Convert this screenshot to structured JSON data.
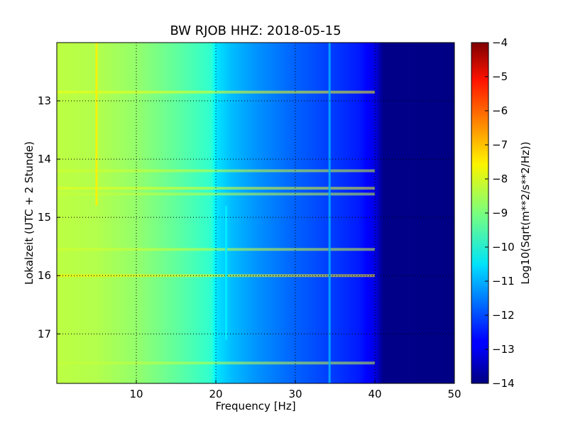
{
  "chart_data": {
    "type": "heatmap",
    "title": "BW RJOB HHZ: 2018-05-15",
    "xlabel": "Frequency [Hz]",
    "ylabel": "Lokalzeit (UTC + 2 Stunde)",
    "colorbar_label": "Log10(Sqrt(m**2/s**2/Hz))",
    "colormap": "jet",
    "xlim": [
      0,
      50
    ],
    "ylim": [
      17.85,
      12.0
    ],
    "y_inverted": true,
    "x_ticks": [
      "10",
      "20",
      "30",
      "40",
      "50"
    ],
    "x_tick_values": [
      10,
      20,
      30,
      40,
      50
    ],
    "y_ticks": [
      "13",
      "14",
      "15",
      "16",
      "17"
    ],
    "y_tick_values": [
      13,
      14,
      15,
      16,
      17
    ],
    "clim": [
      -14,
      -4
    ],
    "colorbar_ticks": [
      "−4",
      "−5",
      "−6",
      "−7",
      "−8",
      "−9",
      "−10",
      "−11",
      "−12",
      "−13",
      "−14"
    ],
    "colorbar_tick_values": [
      -4,
      -5,
      -6,
      -7,
      -8,
      -9,
      -10,
      -11,
      -12,
      -13,
      -14
    ],
    "grid": true,
    "spectrum_profile": {
      "frequency_hz": [
        0,
        5,
        10,
        15,
        19.5,
        20,
        22,
        25,
        30,
        35,
        38,
        40,
        41,
        50
      ],
      "log10_amplitude": [
        -8.4,
        -8.5,
        -8.8,
        -9.3,
        -9.8,
        -10.5,
        -10.9,
        -11.3,
        -11.8,
        -12.2,
        -12.5,
        -13.0,
        -13.9,
        -13.95
      ]
    },
    "features": [
      {
        "frequency_hz": 5.0,
        "time_start": 12.0,
        "time_end": 14.8,
        "log10_amplitude": -7.6
      },
      {
        "frequency_hz": 34.3,
        "time_start": 12.0,
        "time_end": 17.85,
        "log10_amplitude": -11.0
      },
      {
        "frequency_hz": 21.3,
        "time_start": 14.8,
        "time_end": 17.1,
        "log10_amplitude": -10.4
      }
    ],
    "horizontal_bands": [
      {
        "time": 12.85,
        "log10_amplitude": -7.9
      },
      {
        "time": 14.2,
        "log10_amplitude": -8.2
      },
      {
        "time": 14.5,
        "log10_amplitude": -8.0
      },
      {
        "time": 14.6,
        "log10_amplitude": -8.3
      },
      {
        "time": 15.55,
        "log10_amplitude": -8.2
      },
      {
        "time": 16.0,
        "log10_amplitude": -7.6
      },
      {
        "time": 17.5,
        "log10_amplitude": -8.3
      }
    ]
  }
}
